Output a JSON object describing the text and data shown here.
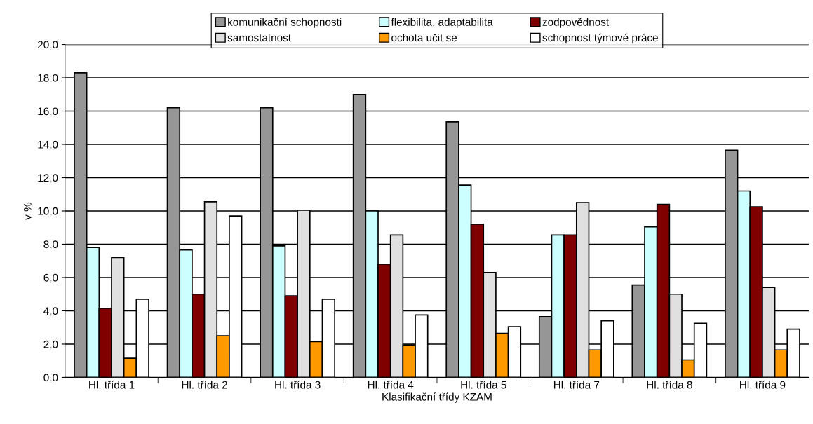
{
  "chart_data": {
    "type": "bar",
    "xlabel": "Klasifikační třídy KZAM",
    "ylabel": "v %",
    "categories": [
      "Hl. třída 1",
      "Hl. třída 2",
      "Hl. třída 3",
      "Hl. třída 4",
      "Hl. třída 5",
      "Hl. třída 7",
      "Hl. třída 8",
      "Hl. třída 9"
    ],
    "series": [
      {
        "name": "komunikační schopnosti",
        "color": "#969696",
        "values": [
          18.3,
          16.2,
          16.2,
          17.0,
          15.35,
          3.65,
          5.55,
          13.65
        ]
      },
      {
        "name": "flexibilita, adaptabilita",
        "color": "#ccffff",
        "values": [
          7.8,
          7.65,
          7.9,
          10.0,
          11.55,
          8.55,
          9.05,
          11.2
        ]
      },
      {
        "name": "zodpovědnost",
        "color": "#800000",
        "values": [
          4.15,
          5.0,
          4.9,
          6.8,
          9.2,
          8.55,
          10.4,
          10.25
        ]
      },
      {
        "name": "samostatnost",
        "color": "#e0e0e0",
        "values": [
          7.2,
          10.55,
          10.05,
          8.55,
          6.3,
          10.5,
          5.0,
          5.4
        ]
      },
      {
        "name": "ochota učit se",
        "color": "#ff9900",
        "values": [
          1.15,
          2.5,
          2.15,
          1.95,
          2.65,
          1.65,
          1.05,
          1.65
        ]
      },
      {
        "name": "schopnost týmové práce",
        "color": "#ffffff",
        "values": [
          4.7,
          9.7,
          4.7,
          3.75,
          3.05,
          3.4,
          3.25,
          2.9
        ]
      }
    ],
    "ylim": [
      0,
      20
    ],
    "yticks": [
      {
        "value": 0,
        "label": "0,0"
      },
      {
        "value": 2,
        "label": "2,0"
      },
      {
        "value": 4,
        "label": "4,0"
      },
      {
        "value": 6,
        "label": "6,0"
      },
      {
        "value": 8,
        "label": "8,0"
      },
      {
        "value": 10,
        "label": "10,0"
      },
      {
        "value": 12,
        "label": "12,0"
      },
      {
        "value": 14,
        "label": "14,0"
      },
      {
        "value": 16,
        "label": "16,0"
      },
      {
        "value": 18,
        "label": "18,0"
      },
      {
        "value": 20,
        "label": "20,0"
      }
    ],
    "grid": "y",
    "legend": "top"
  }
}
